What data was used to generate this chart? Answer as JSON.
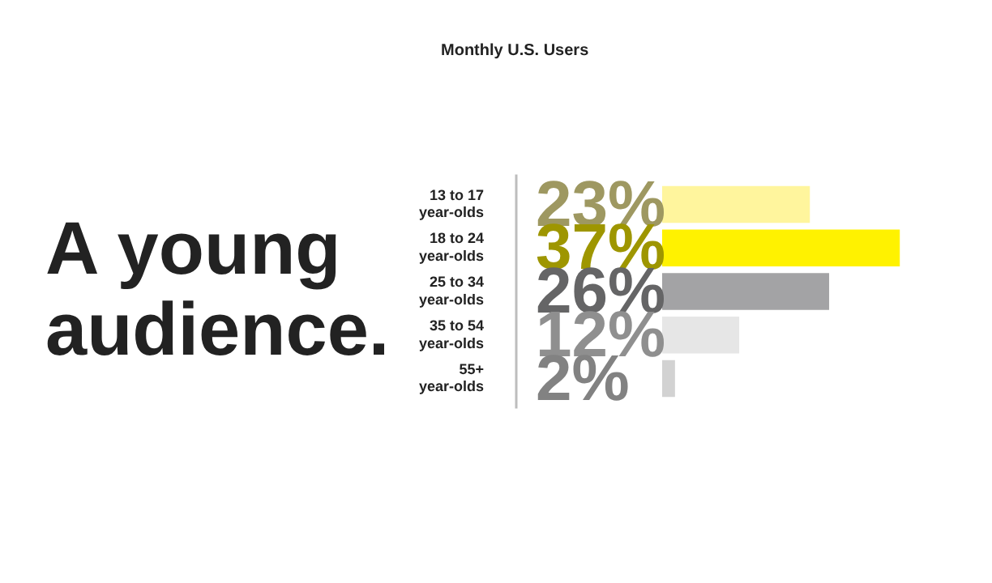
{
  "chart_data": {
    "type": "bar",
    "orientation": "horizontal",
    "title": "A young audience.",
    "subtitle": "Monthly U.S. Users",
    "categories": [
      "13 to 17 year-olds",
      "18 to 24 year-olds",
      "25 to 34 year-olds",
      "35 to 54 year-olds",
      "55+ year-olds"
    ],
    "values": [
      23,
      37,
      26,
      12,
      2
    ],
    "colors": [
      "#fff59d",
      "#fff200",
      "#a3a3a5",
      "#e6e6e6",
      "#d2d2d2"
    ],
    "value_labels": [
      "23%",
      "37%",
      "26%",
      "12%",
      "2%"
    ],
    "legend": false
  }
}
